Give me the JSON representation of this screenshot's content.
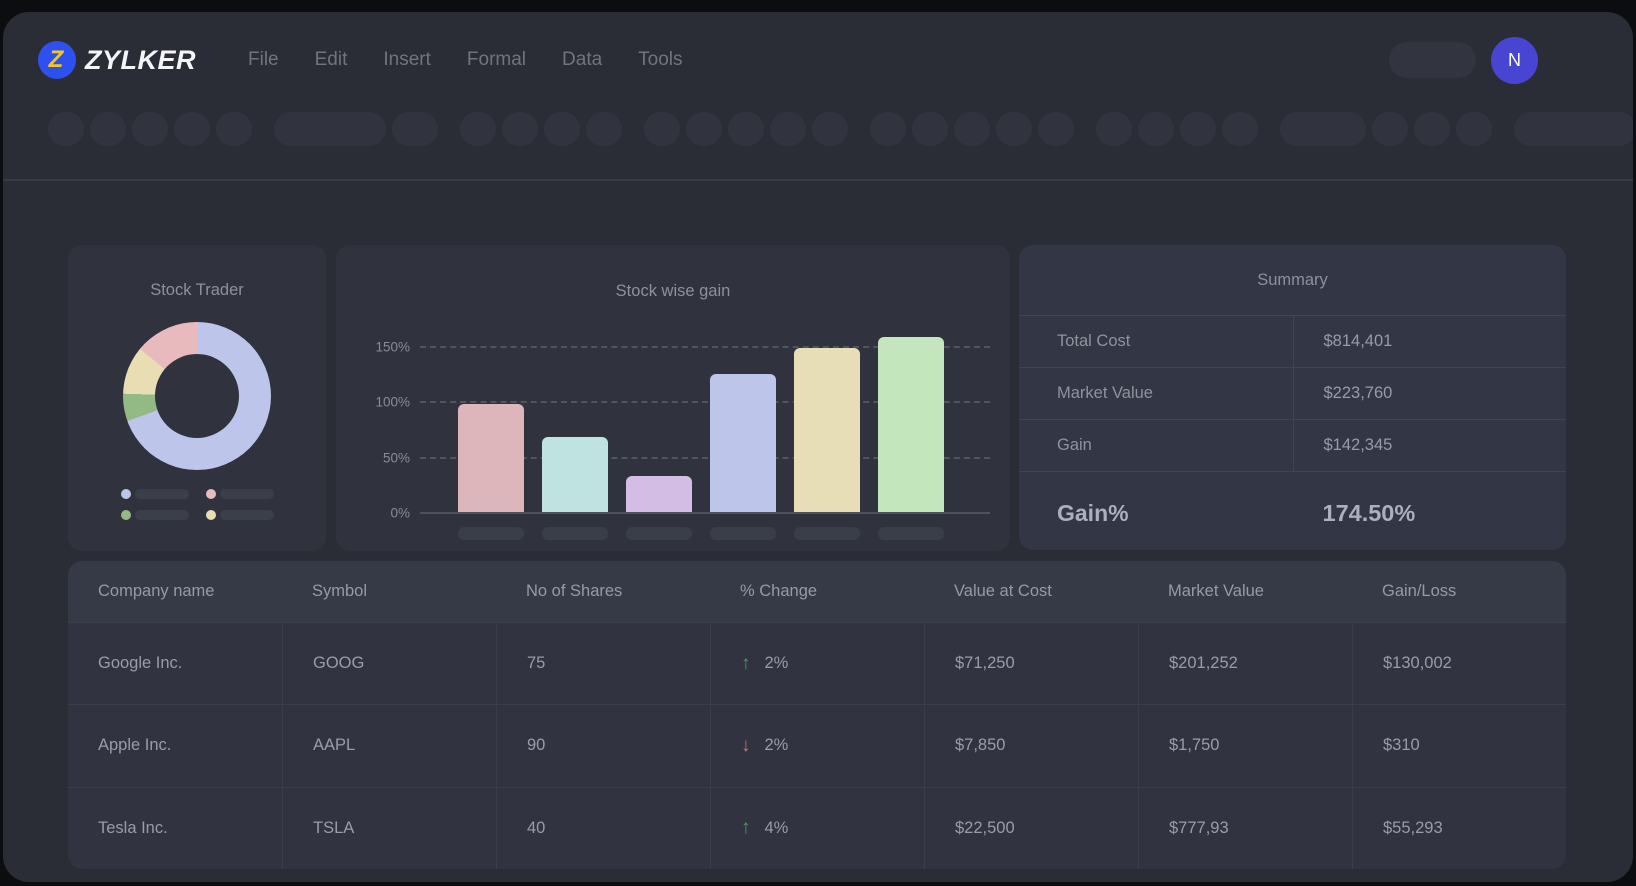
{
  "brand": {
    "name": "ZYLKER",
    "logo_letter": "Z",
    "logo_bg": "#2d51ee",
    "logo_letter_color": "#f6c51d"
  },
  "menu": {
    "items": [
      "File",
      "Edit",
      "Insert",
      "Formal",
      "Data",
      "Tools"
    ]
  },
  "header_right": {
    "avatar_initial": "N",
    "avatar_color": "#4745d1"
  },
  "toolbar": {
    "groups": [
      [
        36,
        36,
        36,
        36,
        36
      ],
      [
        112,
        46
      ],
      [
        36,
        36,
        36,
        36
      ],
      [
        36,
        36,
        36,
        36,
        36
      ],
      [
        36,
        36,
        36,
        36,
        36
      ],
      [
        36,
        36,
        36,
        36
      ],
      [
        86,
        36,
        36,
        36
      ],
      [
        122
      ]
    ]
  },
  "cards": {
    "donut": {
      "title": "Stock Trader",
      "legend": [
        {
          "name": "legend-lavender",
          "color": "#bec5ea"
        },
        {
          "name": "legend-pink",
          "color": "#e9babd"
        },
        {
          "name": "legend-green",
          "color": "#93ba85"
        },
        {
          "name": "legend-cream",
          "color": "#e9ddb3"
        }
      ]
    },
    "bar": {
      "title": "Stock wise gain",
      "y_ticks": [
        {
          "label": "150%",
          "value": 150
        },
        {
          "label": "100%",
          "value": 100
        },
        {
          "label": "50%",
          "value": 50
        },
        {
          "label": "0%",
          "value": 0
        }
      ]
    },
    "summary": {
      "title": "Summary",
      "rows": [
        {
          "label": "Total Cost",
          "value": "$814,401"
        },
        {
          "label": "Market Value",
          "value": "$223,760"
        },
        {
          "label": "Gain",
          "value": "$142,345"
        }
      ],
      "highlight": {
        "label": "Gain%",
        "value": "174.50%"
      }
    }
  },
  "table": {
    "columns": [
      "Company name",
      "Symbol",
      "No of Shares",
      "% Change",
      "Value at Cost",
      "Market Value",
      "Gain/Loss"
    ],
    "rows": [
      {
        "company": "Google Inc.",
        "symbol": "GOOG",
        "shares": "75",
        "change_dir": "up",
        "change": "2%",
        "value_at_cost": "$71,250",
        "market_value": "$201,252",
        "gain_loss": "$130,002"
      },
      {
        "company": "Apple Inc.",
        "symbol": "AAPL",
        "shares": "90",
        "change_dir": "down",
        "change": "2%",
        "value_at_cost": "$7,850",
        "market_value": "$1,750",
        "gain_loss": "$310"
      },
      {
        "company": "Tesla Inc.",
        "symbol": "TSLA",
        "shares": "40",
        "change_dir": "up",
        "change": "4%",
        "value_at_cost": "$22,500",
        "market_value": "$777,93",
        "gain_loss": "$55,293"
      }
    ]
  },
  "chart_data": [
    {
      "type": "pie",
      "title": "Stock Trader",
      "donut": true,
      "start": "top",
      "direction": "clockwise",
      "slices": [
        {
          "name": "slice-lavender",
          "value": 69.5,
          "color": "#bec5ea"
        },
        {
          "name": "slice-green",
          "value": 6,
          "color": "#93ba85"
        },
        {
          "name": "slice-cream",
          "value": 10.5,
          "color": "#e9ddb3"
        },
        {
          "name": "slice-pink",
          "value": 14,
          "color": "#e9babd"
        }
      ],
      "legend": "four skeleton placeholder labels (no text)"
    },
    {
      "type": "bar",
      "title": "Stock wise gain",
      "categories": [
        "",
        "",
        "",
        "",
        "",
        ""
      ],
      "values": [
        98,
        68,
        33,
        125,
        148,
        158
      ],
      "colors": [
        "#dcb6ba",
        "#bee3e0",
        "#d4bde5",
        "#bec5ea",
        "#e7ddb6",
        "#c4e6bc"
      ],
      "yticks_percent": [
        0,
        50,
        100,
        150
      ],
      "ylim": [
        0,
        160
      ],
      "grid": "dashed horizontal",
      "x_labels": "skeleton placeholders (no text)"
    }
  ],
  "colors": {
    "green_up": "#4e9d5b",
    "red_down": "#d0706f",
    "window_bg": "#2a2d36",
    "card_bg": "#30333d"
  }
}
